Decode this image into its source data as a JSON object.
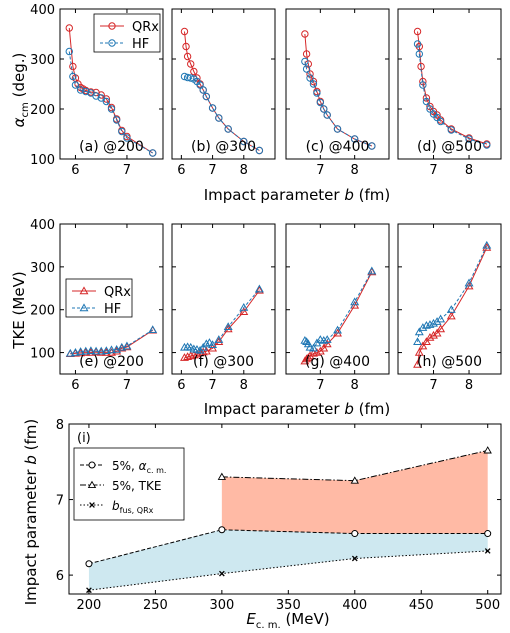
{
  "figure": {
    "row1": {
      "ylabel": "α",
      "ylabel_sub": "cm",
      "ylabel_tail": "(deg.)",
      "xlabel": "Impact parameter ",
      "xlabel_var": "b",
      "xlabel_unit": " (fm)"
    },
    "row2": {
      "ylabel": "TKE (MeV)",
      "xlabel": "Impact parameter ",
      "xlabel_var": "b",
      "xlabel_unit": " (fm)"
    },
    "row3": {
      "ylabel": "Impact parameter ",
      "ylabel_var": "b",
      "ylabel_unit": " (fm)",
      "xlabel_main": "E",
      "xlabel_sub": "c. m.",
      "xlabel_unit": " (MeV)"
    }
  },
  "legend_top": [
    {
      "label": "QRx",
      "color": "#d62728",
      "dash": false
    },
    {
      "label": "HF",
      "color": "#1f77b4",
      "dash": true
    }
  ],
  "legend_mid": [
    {
      "label": "QRx",
      "color": "#d62728",
      "dash": false
    },
    {
      "label": "HF",
      "color": "#1f77b4",
      "dash": true
    }
  ],
  "legend_bottom": [
    {
      "main": "5%, ",
      "var": "α",
      "sub": "c. m."
    },
    {
      "main": "5%, TKE",
      "var": "",
      "sub": ""
    },
    {
      "main": "",
      "var": "b",
      "sub": "fus, QRx"
    }
  ],
  "chart_data": [
    {
      "type": "line",
      "panel_label": "(a) @200",
      "xlim": [
        5.7,
        7.7
      ],
      "ylim": [
        100,
        400
      ],
      "xticks": [
        6,
        7
      ],
      "yticks": [
        100,
        200,
        300,
        400
      ],
      "series": [
        {
          "name": "QRx",
          "color": "#d62728",
          "x": [
            5.88,
            5.95,
            6.0,
            6.05,
            6.1,
            6.15,
            6.2,
            6.3,
            6.4,
            6.5,
            6.6,
            6.7,
            6.8,
            6.9,
            7.0,
            7.5
          ],
          "y": [
            362,
            285,
            262,
            250,
            243,
            240,
            237,
            234,
            233,
            228,
            220,
            203,
            180,
            157,
            145,
            112
          ]
        },
        {
          "name": "HF",
          "color": "#1f77b4",
          "x": [
            5.88,
            5.95,
            6.0,
            6.1,
            6.2,
            6.3,
            6.4,
            6.5,
            6.6,
            6.7,
            6.8,
            6.9,
            7.0,
            7.5
          ],
          "y": [
            315,
            265,
            248,
            238,
            235,
            232,
            226,
            222,
            215,
            200,
            178,
            155,
            142,
            112
          ]
        }
      ]
    },
    {
      "type": "line",
      "panel_label": "(b) @300",
      "xlim": [
        5.7,
        9.0
      ],
      "ylim": [
        100,
        400
      ],
      "xticks": [
        6,
        7,
        8
      ],
      "yticks": [
        100,
        200,
        300,
        400
      ],
      "series": [
        {
          "name": "QRx",
          "color": "#d62728",
          "x": [
            6.1,
            6.15,
            6.2,
            6.3,
            6.4,
            6.5,
            6.6,
            6.7,
            6.8,
            7.0,
            7.2,
            7.5,
            8.0,
            8.5
          ],
          "y": [
            355,
            325,
            305,
            290,
            275,
            262,
            250,
            238,
            225,
            202,
            182,
            160,
            135,
            117
          ]
        },
        {
          "name": "HF",
          "color": "#1f77b4",
          "x": [
            6.1,
            6.2,
            6.3,
            6.4,
            6.5,
            6.6,
            6.7,
            6.8,
            7.0,
            7.2,
            7.5,
            8.0,
            8.5
          ],
          "y": [
            265,
            263,
            262,
            260,
            255,
            248,
            238,
            225,
            202,
            182,
            160,
            135,
            117
          ]
        }
      ]
    },
    {
      "type": "line",
      "panel_label": "(c) @400",
      "xlim": [
        6.0,
        9.0
      ],
      "ylim": [
        100,
        400
      ],
      "xticks": [
        7,
        8
      ],
      "yticks": [
        100,
        200,
        300,
        400
      ],
      "series": [
        {
          "name": "QRx",
          "color": "#d62728",
          "x": [
            6.55,
            6.6,
            6.65,
            6.7,
            6.8,
            6.9,
            7.0,
            7.1,
            7.2,
            7.5,
            8.0,
            8.5
          ],
          "y": [
            350,
            310,
            290,
            270,
            255,
            235,
            215,
            200,
            188,
            160,
            140,
            126
          ]
        },
        {
          "name": "HF",
          "color": "#1f77b4",
          "x": [
            6.55,
            6.6,
            6.7,
            6.8,
            6.9,
            7.0,
            7.1,
            7.2,
            7.5,
            8.0,
            8.5
          ],
          "y": [
            295,
            280,
            262,
            250,
            232,
            213,
            200,
            188,
            160,
            140,
            126
          ]
        }
      ]
    },
    {
      "type": "line",
      "panel_label": "(d) @500",
      "xlim": [
        6.0,
        8.9
      ],
      "ylim": [
        100,
        400
      ],
      "xticks": [
        7,
        8
      ],
      "yticks": [
        100,
        200,
        300,
        400
      ],
      "series": [
        {
          "name": "QRx",
          "color": "#d62728",
          "x": [
            6.55,
            6.6,
            6.65,
            6.7,
            6.8,
            6.9,
            7.0,
            7.1,
            7.2,
            7.5,
            8.0,
            8.5
          ],
          "y": [
            355,
            325,
            285,
            255,
            222,
            205,
            195,
            188,
            178,
            160,
            142,
            130
          ]
        },
        {
          "name": "HF",
          "color": "#1f77b4",
          "x": [
            6.55,
            6.6,
            6.7,
            6.8,
            6.9,
            7.0,
            7.1,
            7.2,
            7.5,
            8.0,
            8.5
          ],
          "y": [
            330,
            310,
            248,
            215,
            200,
            190,
            183,
            175,
            158,
            140,
            128
          ]
        }
      ]
    },
    {
      "type": "line",
      "panel_label": "(e) @200",
      "xlim": [
        5.7,
        7.7
      ],
      "ylim": [
        50,
        400
      ],
      "xticks": [
        6,
        7
      ],
      "yticks": [
        100,
        200,
        300,
        400
      ],
      "series": [
        {
          "name": "QRx",
          "color": "#d62728",
          "x": [
            5.9,
            6.0,
            6.1,
            6.2,
            6.3,
            6.4,
            6.5,
            6.6,
            6.7,
            6.8,
            6.9,
            7.0,
            7.5
          ],
          "y": [
            97,
            98,
            99,
            100,
            100,
            101,
            100,
            100,
            100,
            103,
            110,
            113,
            152
          ]
        },
        {
          "name": "HF",
          "color": "#1f77b4",
          "x": [
            5.9,
            6.0,
            6.1,
            6.2,
            6.3,
            6.4,
            6.5,
            6.6,
            6.7,
            6.8,
            6.9,
            7.0,
            7.5
          ],
          "y": [
            98,
            100,
            102,
            103,
            104,
            103,
            103,
            104,
            106,
            107,
            112,
            115,
            153
          ]
        }
      ]
    },
    {
      "type": "line",
      "panel_label": "(f) @300",
      "xlim": [
        5.7,
        9.0
      ],
      "ylim": [
        50,
        400
      ],
      "xticks": [
        6,
        7,
        8
      ],
      "yticks": [
        100,
        200,
        300,
        400
      ],
      "series": [
        {
          "name": "QRx",
          "color": "#d62728",
          "x": [
            6.1,
            6.2,
            6.3,
            6.4,
            6.5,
            6.6,
            6.7,
            6.8,
            7.0,
            7.2,
            7.5,
            8.0,
            8.5
          ],
          "y": [
            88,
            90,
            92,
            94,
            96,
            99,
            101,
            103,
            110,
            125,
            155,
            195,
            245
          ]
        },
        {
          "name": "HF",
          "color": "#1f77b4",
          "x": [
            6.1,
            6.2,
            6.3,
            6.4,
            6.5,
            6.6,
            6.7,
            6.8,
            6.9,
            7.0,
            7.2,
            7.5,
            8.0,
            8.5
          ],
          "y": [
            112,
            113,
            112,
            108,
            107,
            105,
            112,
            120,
            123,
            118,
            130,
            160,
            205,
            248
          ]
        }
      ]
    },
    {
      "type": "line",
      "panel_label": "(g) @400",
      "xlim": [
        6.0,
        9.0
      ],
      "ylim": [
        50,
        400
      ],
      "xticks": [
        7,
        8
      ],
      "yticks": [
        100,
        200,
        300,
        400
      ],
      "series": [
        {
          "name": "QRx",
          "color": "#d62728",
          "x": [
            6.55,
            6.6,
            6.65,
            6.7,
            6.8,
            6.9,
            7.0,
            7.1,
            7.2,
            7.5,
            8.0,
            8.5
          ],
          "y": [
            80,
            85,
            88,
            92,
            98,
            100,
            103,
            110,
            120,
            145,
            210,
            288
          ]
        },
        {
          "name": "HF",
          "color": "#1f77b4",
          "x": [
            6.55,
            6.6,
            6.65,
            6.7,
            6.8,
            6.9,
            7.0,
            7.1,
            7.2,
            7.5,
            8.0,
            8.5
          ],
          "y": [
            128,
            125,
            120,
            112,
            110,
            122,
            130,
            128,
            130,
            152,
            218,
            290
          ]
        }
      ]
    },
    {
      "type": "line",
      "panel_label": "(h) @500",
      "xlim": [
        6.0,
        8.9
      ],
      "ylim": [
        50,
        400
      ],
      "xticks": [
        7,
        8
      ],
      "yticks": [
        100,
        200,
        300,
        400
      ],
      "series": [
        {
          "name": "QRx",
          "color": "#d62728",
          "x": [
            6.55,
            6.6,
            6.7,
            6.8,
            6.9,
            7.0,
            7.1,
            7.2,
            7.5,
            8.0,
            8.5
          ],
          "y": [
            72,
            100,
            115,
            125,
            135,
            140,
            145,
            155,
            185,
            255,
            345
          ]
        },
        {
          "name": "HF",
          "color": "#1f77b4",
          "x": [
            6.55,
            6.6,
            6.7,
            6.8,
            6.9,
            7.0,
            7.1,
            7.2,
            7.5,
            8.0,
            8.5
          ],
          "y": [
            125,
            148,
            158,
            163,
            165,
            168,
            172,
            178,
            200,
            262,
            350
          ]
        }
      ]
    },
    {
      "type": "line",
      "panel_label": "(i)",
      "xlim": [
        185,
        510
      ],
      "ylim": [
        5.75,
        8.0
      ],
      "xticks": [
        200,
        250,
        300,
        350,
        400,
        450,
        500
      ],
      "yticks": [
        6,
        7,
        8
      ],
      "series": [
        {
          "name": "5%, αc. m.",
          "x": [
            200,
            300,
            400,
            500
          ],
          "y": [
            6.15,
            6.6,
            6.55,
            6.55
          ]
        },
        {
          "name": "5%, TKE",
          "x": [
            300,
            400,
            500
          ],
          "y": [
            7.3,
            7.25,
            7.65
          ]
        },
        {
          "name": "bfus, QRx",
          "x": [
            200,
            300,
            400,
            500
          ],
          "y": [
            5.8,
            6.02,
            6.22,
            6.32
          ]
        }
      ],
      "fills": [
        {
          "between": [
            "5%, αc. m.",
            "bfus, QRx"
          ],
          "color": "#add8e6"
        },
        {
          "between": [
            "5%, TKE",
            "5%, αc. m."
          ],
          "color": "#ff8c69"
        }
      ]
    }
  ]
}
